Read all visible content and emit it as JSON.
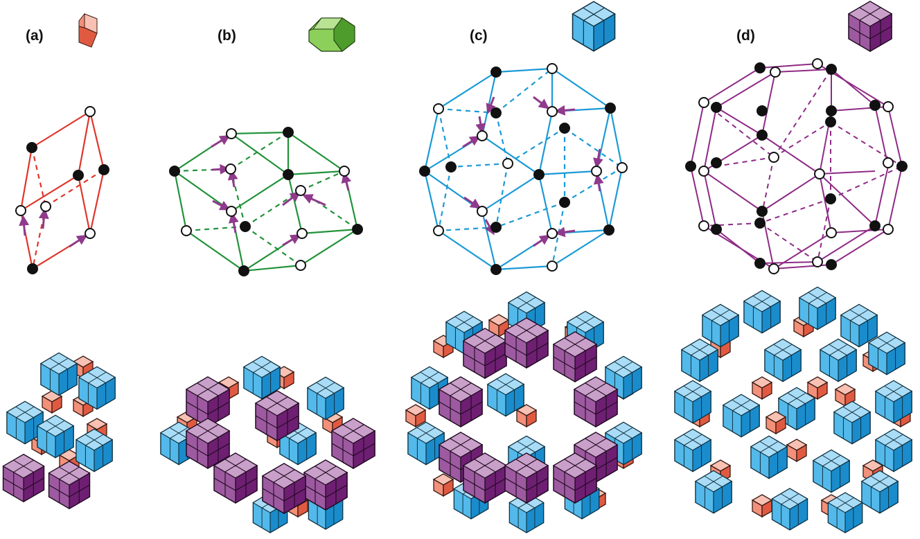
{
  "panels": [
    {
      "label": "(a)",
      "unit": "rhombohedron",
      "color": "#e4604a"
    },
    {
      "label": "(b)",
      "unit": "rhombic-dodecahedron",
      "color": "#21923a"
    },
    {
      "label": "(c)",
      "unit": "rhombic-icosahedron",
      "color": "#1a9ad6"
    },
    {
      "label": "(d)",
      "unit": "rhombic-triacontahedron",
      "color": "#8e2a86"
    }
  ],
  "colors": {
    "salmon": "#f2907a",
    "salmon_dark": "#e05a42",
    "salmon_light": "#f8c1b3",
    "green": "#8ccf5a",
    "green_dark": "#4e9c2c",
    "green_light": "#b9e394",
    "blue": "#53b9ea",
    "blue_dark": "#1a8ccc",
    "blue_light": "#a9dcf6",
    "purple": "#9d5aa0",
    "purple_dark": "#6e1f72",
    "purple_light": "#c9a0c9",
    "arrow": "#8f3a8c",
    "red_line": "#e0352b",
    "green_line": "#21923a",
    "blue_line": "#1a9ad6",
    "purple_line": "#8e2a86",
    "node_filled": "#111111",
    "node_open": "#ffffff"
  }
}
